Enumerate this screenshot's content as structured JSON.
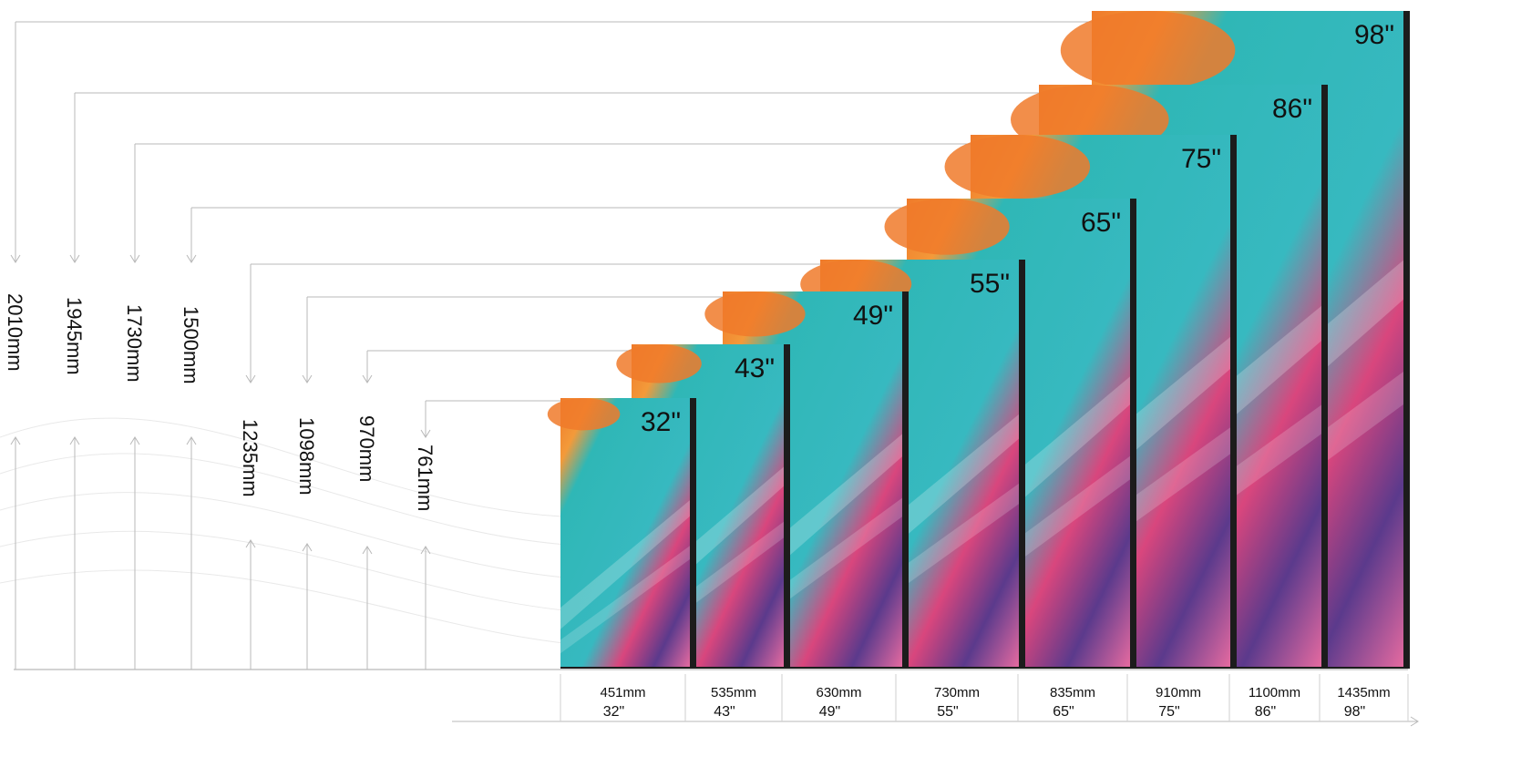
{
  "screens": [
    {
      "size": "32\"",
      "width": "451mm",
      "height": "761mm"
    },
    {
      "size": "43\"",
      "width": "535mm",
      "height": "970mm"
    },
    {
      "size": "49\"",
      "width": "630mm",
      "height": "1098mm"
    },
    {
      "size": "55\"",
      "width": "730mm",
      "height": "1235mm"
    },
    {
      "size": "65\"",
      "width": "835mm",
      "height": "1500mm"
    },
    {
      "size": "75\"",
      "width": "910mm",
      "height": "1730mm"
    },
    {
      "size": "86\"",
      "width": "1100mm",
      "height": "1945mm"
    },
    {
      "size": "98\"",
      "width": "1435mm",
      "height": "2010mm"
    }
  ],
  "colors": {
    "guide": "#b9b9b9",
    "bezel": "#1c1c1c",
    "teal": "#2fb7b6",
    "orange": "#f07a2a",
    "magenta": "#d9467d",
    "purple": "#5b3a8c"
  }
}
